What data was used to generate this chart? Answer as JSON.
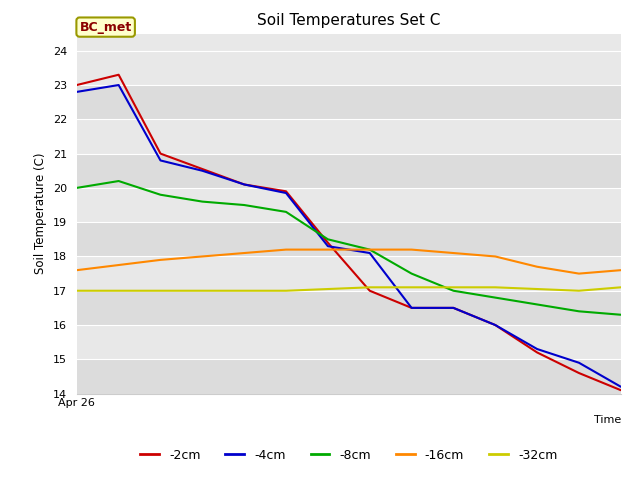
{
  "title": "Soil Temperatures Set C",
  "xlabel": "Time",
  "ylabel": "Soil Temperature (C)",
  "ylim": [
    14.0,
    24.5
  ],
  "yticks": [
    14.0,
    15.0,
    16.0,
    17.0,
    18.0,
    19.0,
    20.0,
    21.0,
    22.0,
    23.0,
    24.0
  ],
  "x_label_start": "Apr 26",
  "annotation": "BC_met",
  "fig_bg_color": "#ffffff",
  "plot_bg_color": "#e8e8e8",
  "band_colors": [
    "#dcdcdc",
    "#e8e8e8"
  ],
  "series": {
    "-2cm": {
      "color": "#cc0000",
      "data": [
        23.0,
        23.3,
        21.0,
        20.55,
        20.1,
        19.9,
        18.4,
        17.0,
        16.5,
        16.5,
        16.0,
        15.2,
        14.6,
        14.1
      ]
    },
    "-4cm": {
      "color": "#0000cc",
      "data": [
        22.8,
        23.0,
        20.8,
        20.5,
        20.1,
        19.85,
        18.3,
        18.1,
        16.5,
        16.5,
        16.0,
        15.3,
        14.9,
        14.2
      ]
    },
    "-8cm": {
      "color": "#00aa00",
      "data": [
        20.0,
        20.2,
        19.8,
        19.6,
        19.5,
        19.3,
        18.5,
        18.2,
        17.5,
        17.0,
        16.8,
        16.6,
        16.4,
        16.3
      ]
    },
    "-16cm": {
      "color": "#ff8800",
      "data": [
        17.6,
        17.75,
        17.9,
        18.0,
        18.1,
        18.2,
        18.2,
        18.2,
        18.2,
        18.1,
        18.0,
        17.7,
        17.5,
        17.6
      ]
    },
    "-32cm": {
      "color": "#cccc00",
      "data": [
        17.0,
        17.0,
        17.0,
        17.0,
        17.0,
        17.0,
        17.05,
        17.1,
        17.1,
        17.1,
        17.1,
        17.05,
        17.0,
        17.1
      ]
    }
  }
}
